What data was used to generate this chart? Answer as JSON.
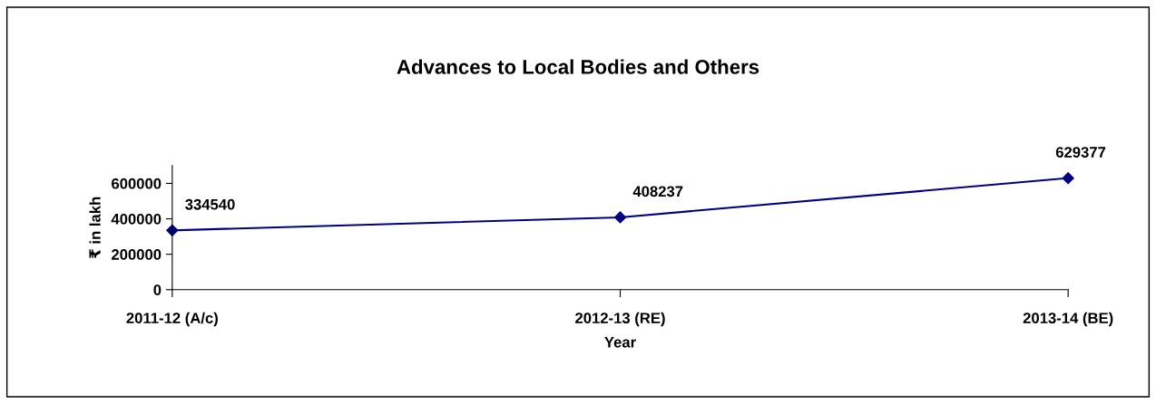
{
  "chart_data": {
    "type": "line",
    "title": "Advances to Local Bodies and Others",
    "xlabel": "Year",
    "ylabel": "₹ in lakh",
    "categories": [
      "2011-12 (A/c)",
      "2012-13 (RE)",
      "2013-14 (BE)"
    ],
    "series": [
      {
        "color": "#000080",
        "values": [
          334540,
          408237,
          629377
        ]
      }
    ],
    "ylim": [
      0,
      700000
    ],
    "yticks": [
      0,
      200000,
      400000,
      600000
    ],
    "data_labels": true,
    "marker": "diamond",
    "line_style": "solid"
  }
}
